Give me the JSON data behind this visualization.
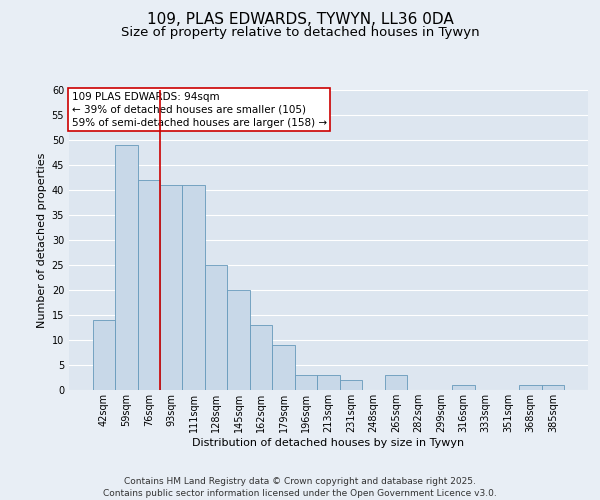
{
  "title_line1": "109, PLAS EDWARDS, TYWYN, LL36 0DA",
  "title_line2": "Size of property relative to detached houses in Tywyn",
  "xlabel": "Distribution of detached houses by size in Tywyn",
  "ylabel": "Number of detached properties",
  "categories": [
    "42sqm",
    "59sqm",
    "76sqm",
    "93sqm",
    "111sqm",
    "128sqm",
    "145sqm",
    "162sqm",
    "179sqm",
    "196sqm",
    "213sqm",
    "231sqm",
    "248sqm",
    "265sqm",
    "282sqm",
    "299sqm",
    "316sqm",
    "333sqm",
    "351sqm",
    "368sqm",
    "385sqm"
  ],
  "values": [
    14,
    49,
    42,
    41,
    41,
    25,
    20,
    13,
    9,
    3,
    3,
    2,
    0,
    3,
    0,
    0,
    1,
    0,
    0,
    1,
    1
  ],
  "bar_color": "#c8d8e8",
  "bar_edge_color": "#6699bb",
  "background_color": "#dde6f0",
  "grid_color": "#ffffff",
  "vline_color": "#cc0000",
  "annotation_text": "109 PLAS EDWARDS: 94sqm\n← 39% of detached houses are smaller (105)\n59% of semi-detached houses are larger (158) →",
  "annotation_box_color": "#ffffff",
  "annotation_border_color": "#cc0000",
  "footer_text": "Contains HM Land Registry data © Crown copyright and database right 2025.\nContains public sector information licensed under the Open Government Licence v3.0.",
  "fig_background": "#e8eef5",
  "ylim": [
    0,
    60
  ],
  "yticks": [
    0,
    5,
    10,
    15,
    20,
    25,
    30,
    35,
    40,
    45,
    50,
    55,
    60
  ],
  "title_fontsize": 11,
  "subtitle_fontsize": 9.5,
  "axis_label_fontsize": 8,
  "tick_fontsize": 7,
  "annotation_fontsize": 7.5,
  "footer_fontsize": 6.5
}
